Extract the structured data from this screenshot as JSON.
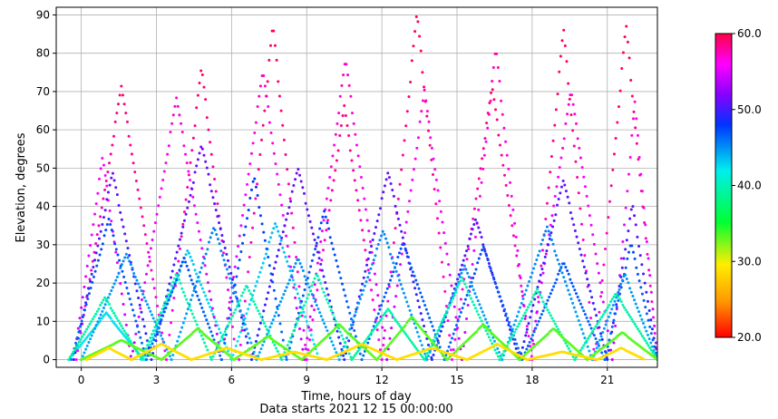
{
  "chart_data": {
    "type": "scatter",
    "xlabel": "Time, hours of day",
    "subtitle": "Data starts 2021 12 15 00:00:00",
    "ylabel": "Elevation, degrees",
    "xlim": [
      -1,
      23
    ],
    "ylim": [
      -2,
      92
    ],
    "xticks": [
      0,
      3,
      6,
      9,
      12,
      15,
      18,
      21
    ],
    "yticks": [
      0,
      10,
      20,
      30,
      40,
      50,
      60,
      70,
      80,
      90
    ],
    "grid": true,
    "colorbar": {
      "min": 20.0,
      "max": 60.0,
      "ticks": [
        "20.0",
        "30.0",
        "40.0",
        "50.0",
        "60.0"
      ],
      "colormap": "hsv-like: red → yellow → green → cyan → blue → purple → magenta → pink"
    },
    "series": [
      {
        "passes": [
          [
            -0.5,
            2.5,
            12
          ],
          [
            2.5,
            6.0,
            28
          ],
          [
            6.0,
            9.5,
            35
          ]
        ],
        "color_value": 42
      },
      {
        "passes": [
          [
            -0.2,
            3.4,
            70
          ],
          [
            3.4,
            6.2,
            75
          ],
          [
            6.3,
            9.0,
            86
          ],
          [
            9.0,
            12.0,
            65
          ],
          [
            12.0,
            14.8,
            89
          ],
          [
            14.8,
            18.0,
            70
          ],
          [
            18.0,
            20.5,
            85
          ],
          [
            20.5,
            23.0,
            86
          ]
        ],
        "color_value": 56
      },
      {
        "passes": [
          [
            -0.3,
            2.0,
            52
          ],
          [
            2.0,
            5.6,
            67
          ],
          [
            5.6,
            8.9,
            74
          ],
          [
            8.9,
            12.2,
            77
          ],
          [
            12.2,
            15.2,
            69
          ],
          [
            15.2,
            17.9,
            80
          ],
          [
            17.9,
            21.2,
            69
          ],
          [
            21.2,
            23.0,
            66
          ]
        ],
        "color_value": 54
      },
      {
        "passes": [
          [
            -0.3,
            2.8,
            48
          ],
          [
            2.8,
            6.8,
            55
          ],
          [
            6.8,
            10.5,
            49
          ],
          [
            10.5,
            14.0,
            48
          ],
          [
            14.0,
            17.5,
            36
          ],
          [
            17.5,
            21.0,
            46
          ],
          [
            21.0,
            23.0,
            40
          ]
        ],
        "color_value": 49
      },
      {
        "passes": [
          [
            -0.4,
            2.6,
            36
          ],
          [
            2.6,
            5.6,
            26
          ],
          [
            5.6,
            8.2,
            47
          ],
          [
            8.2,
            11.2,
            38
          ],
          [
            11.2,
            14.5,
            30
          ],
          [
            14.5,
            17.6,
            29
          ],
          [
            17.6,
            20.9,
            25
          ],
          [
            20.9,
            23.0,
            30
          ]
        ],
        "color_value": 46
      },
      {
        "passes": [
          [
            0.0,
            3.6,
            27
          ],
          [
            3.6,
            7.0,
            34
          ],
          [
            7.0,
            10.3,
            26
          ],
          [
            10.3,
            13.8,
            33
          ],
          [
            13.8,
            16.8,
            24
          ],
          [
            16.8,
            20.4,
            34
          ],
          [
            20.4,
            23.0,
            22
          ]
        ],
        "color_value": 44
      },
      {
        "passes": [
          [
            -0.5,
            2.4,
            16
          ],
          [
            2.4,
            5.2,
            22
          ],
          [
            5.2,
            8.0,
            19
          ],
          [
            8.0,
            10.8,
            22
          ],
          [
            10.8,
            13.7,
            13
          ],
          [
            13.7,
            16.7,
            21
          ],
          [
            16.7,
            19.7,
            18
          ],
          [
            19.7,
            23.0,
            17
          ]
        ],
        "color_value": 39
      },
      {
        "passes": [
          [
            0.0,
            3.2,
            5
          ],
          [
            3.2,
            6.1,
            8
          ],
          [
            6.1,
            8.8,
            6
          ],
          [
            8.8,
            11.8,
            9
          ],
          [
            11.8,
            14.6,
            11
          ],
          [
            14.6,
            17.5,
            9
          ],
          [
            17.5,
            20.2,
            8
          ],
          [
            20.2,
            23.0,
            7
          ]
        ],
        "color_value": 33
      },
      {
        "passes": [
          [
            0.2,
            2.0,
            3
          ],
          [
            2.0,
            4.4,
            4
          ],
          [
            4.4,
            7.2,
            3
          ],
          [
            7.2,
            9.8,
            2
          ],
          [
            9.8,
            12.6,
            4
          ],
          [
            12.6,
            15.4,
            3
          ],
          [
            15.4,
            17.8,
            4
          ],
          [
            17.8,
            20.6,
            2
          ],
          [
            20.6,
            22.5,
            3
          ]
        ],
        "color_value": 29
      }
    ]
  }
}
